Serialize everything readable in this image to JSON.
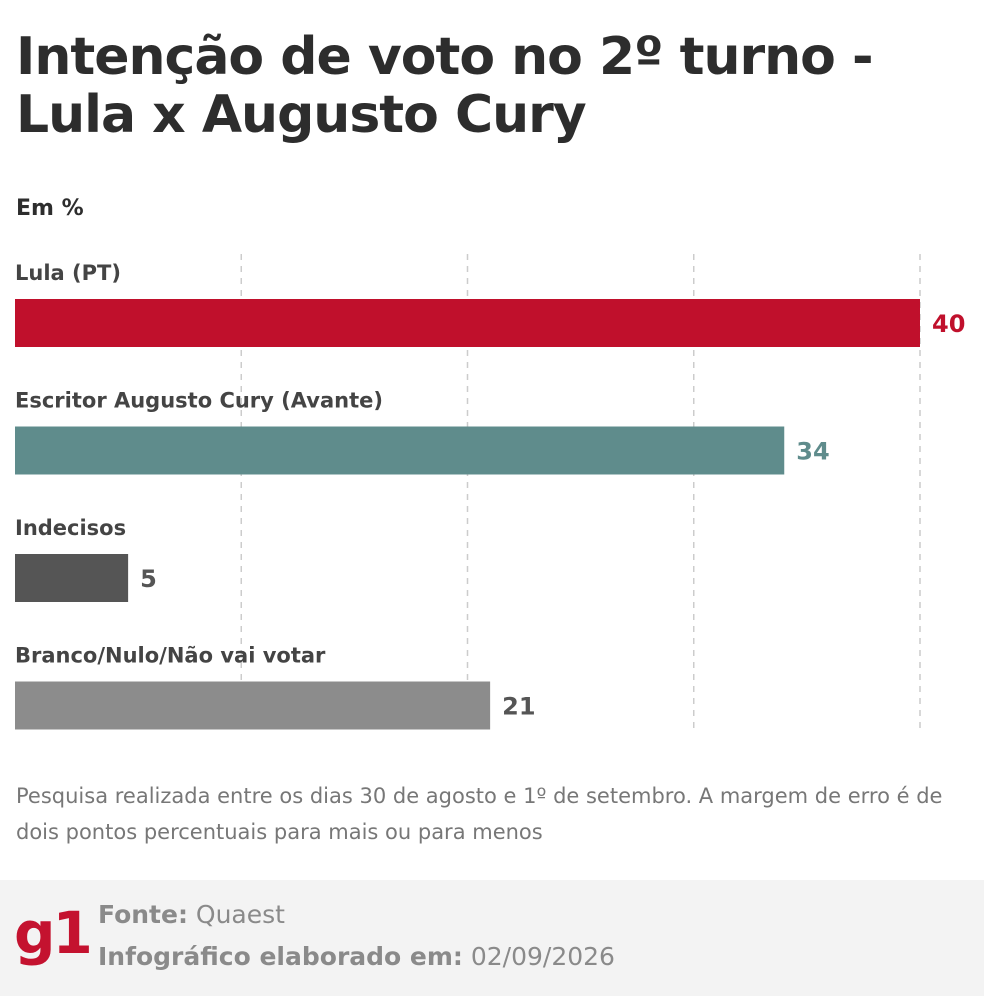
{
  "title": "Intenção de voto no 2º turno - Lula x Augusto Cury",
  "unit_label": "Em %",
  "note": "Pesquisa realizada entre os dias 30 de agosto e 1º de setembro. A margem de erro é de dois pontos percentuais para mais ou para menos",
  "footer": {
    "logo_text": "g1",
    "logo_color": "#c4122f",
    "source_label": "Fonte:",
    "source_value": "Quaest",
    "made_label": "Infográfico elaborado em:",
    "made_value": "02/09/2026"
  },
  "chart_data": {
    "type": "bar",
    "orientation": "horizontal",
    "categories": [
      "Lula (PT)",
      "Escritor Augusto Cury (Avante)",
      "Indecisos",
      "Branco/Nulo/Não vai votar"
    ],
    "values": [
      40,
      34,
      5,
      21
    ],
    "colors": [
      "#c0102c",
      "#5f8c8c",
      "#555555",
      "#8c8c8c"
    ],
    "value_label_colors": [
      "#c0102c",
      "#5f8c8c",
      "#555555",
      "#555555"
    ],
    "xlim": [
      0,
      40
    ],
    "grid": true,
    "gridline_values": [
      0,
      10,
      20,
      30,
      40
    ]
  }
}
